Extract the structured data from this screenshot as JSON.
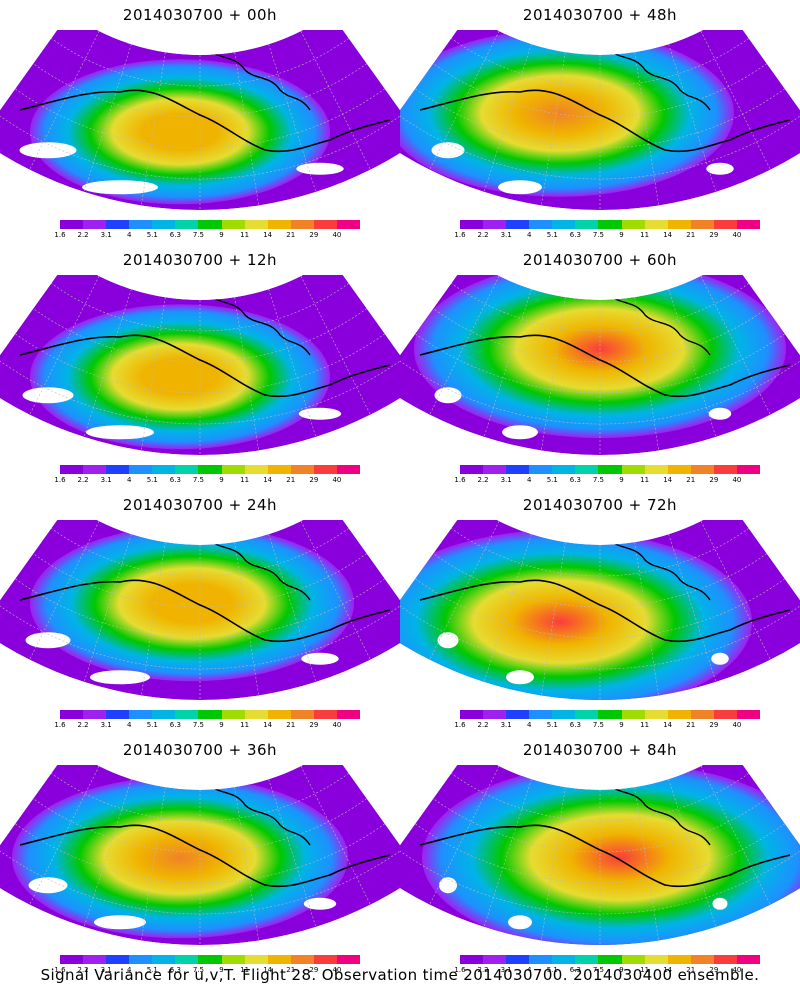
{
  "panels": [
    {
      "title": "2014030700 + 00h",
      "intensity": 0.15,
      "hot": [
        0.45,
        0.55
      ],
      "warm_spread": 0.5
    },
    {
      "title": "2014030700 + 48h",
      "intensity": 0.55,
      "hot": [
        0.4,
        0.45
      ],
      "warm_spread": 0.7
    },
    {
      "title": "2014030700 + 12h",
      "intensity": 0.25,
      "hot": [
        0.45,
        0.55
      ],
      "warm_spread": 0.5
    },
    {
      "title": "2014030700 + 60h",
      "intensity": 0.65,
      "hot": [
        0.5,
        0.4
      ],
      "warm_spread": 0.8
    },
    {
      "title": "2014030700 + 24h",
      "intensity": 0.35,
      "hot": [
        0.48,
        0.45
      ],
      "warm_spread": 0.6
    },
    {
      "title": "2014030700 + 72h",
      "intensity": 0.75,
      "hot": [
        0.4,
        0.55
      ],
      "warm_spread": 0.85
    },
    {
      "title": "2014030700 + 36h",
      "intensity": 0.45,
      "hot": [
        0.45,
        0.5
      ],
      "warm_spread": 0.65
    },
    {
      "title": "2014030700 + 84h",
      "intensity": 0.8,
      "hot": [
        0.55,
        0.5
      ],
      "warm_spread": 0.9
    }
  ],
  "colorbar": {
    "labels": [
      "1.6",
      "2.2",
      "3.1",
      "4",
      "5.1",
      "6.3",
      "7.5",
      "9",
      "11",
      "14",
      "21",
      "29",
      "40"
    ],
    "colors": [
      "#8a00dc",
      "#a020f0",
      "#2040ff",
      "#1e90ff",
      "#00b4e6",
      "#00d2aa",
      "#00c800",
      "#a0dc00",
      "#e6dc32",
      "#f0b400",
      "#f08228",
      "#fa3c3c",
      "#f00082"
    ]
  },
  "footer": "Signal Variance for u,v,T. Flight 28. Observation time 2014030700. 2014030400 ensemble."
}
